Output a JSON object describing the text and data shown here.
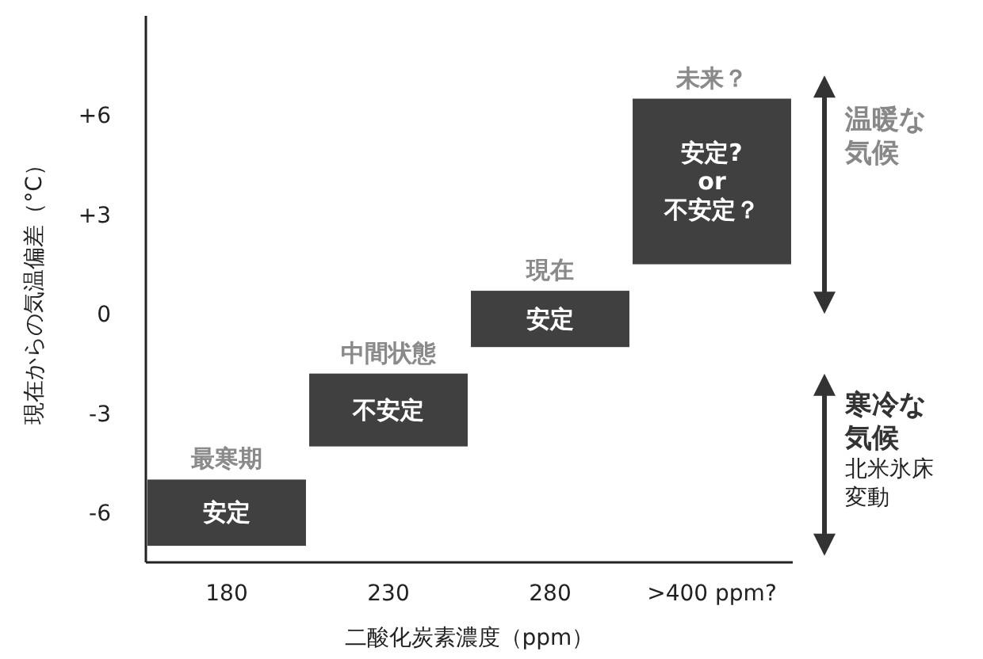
{
  "chart_data": {
    "type": "bar",
    "xlabel": "二酸化炭素濃度（ppm）",
    "ylabel": "現在からの気温偏差（°C）",
    "categories": [
      "180",
      "230",
      "280",
      ">400 ppm?"
    ],
    "base": [
      -7,
      -4,
      -1,
      1.5
    ],
    "values": [
      2,
      2.2,
      1.7,
      5
    ],
    "color": "#404040",
    "ylim": [
      -7.5,
      9
    ],
    "yticks": [
      {
        "value": 6,
        "label": "+6"
      },
      {
        "value": 3,
        "label": "+3"
      },
      0,
      -3,
      -6
    ],
    "annotations": [
      {
        "text": "最寒期",
        "x": "180",
        "y": -5
      },
      {
        "text": "中間状態",
        "x": "230",
        "y": -1.8
      },
      {
        "text": "現在",
        "x": "280",
        "y": 0.7
      },
      {
        "text": "未来？",
        "x": ">400 ppm?",
        "y": 6.5
      },
      "安定",
      "不安定",
      "安定",
      "安定?\nor\n不安定？",
      "温暖な気候",
      "寒冷な気候",
      "北米氷床変動"
    ]
  }
}
